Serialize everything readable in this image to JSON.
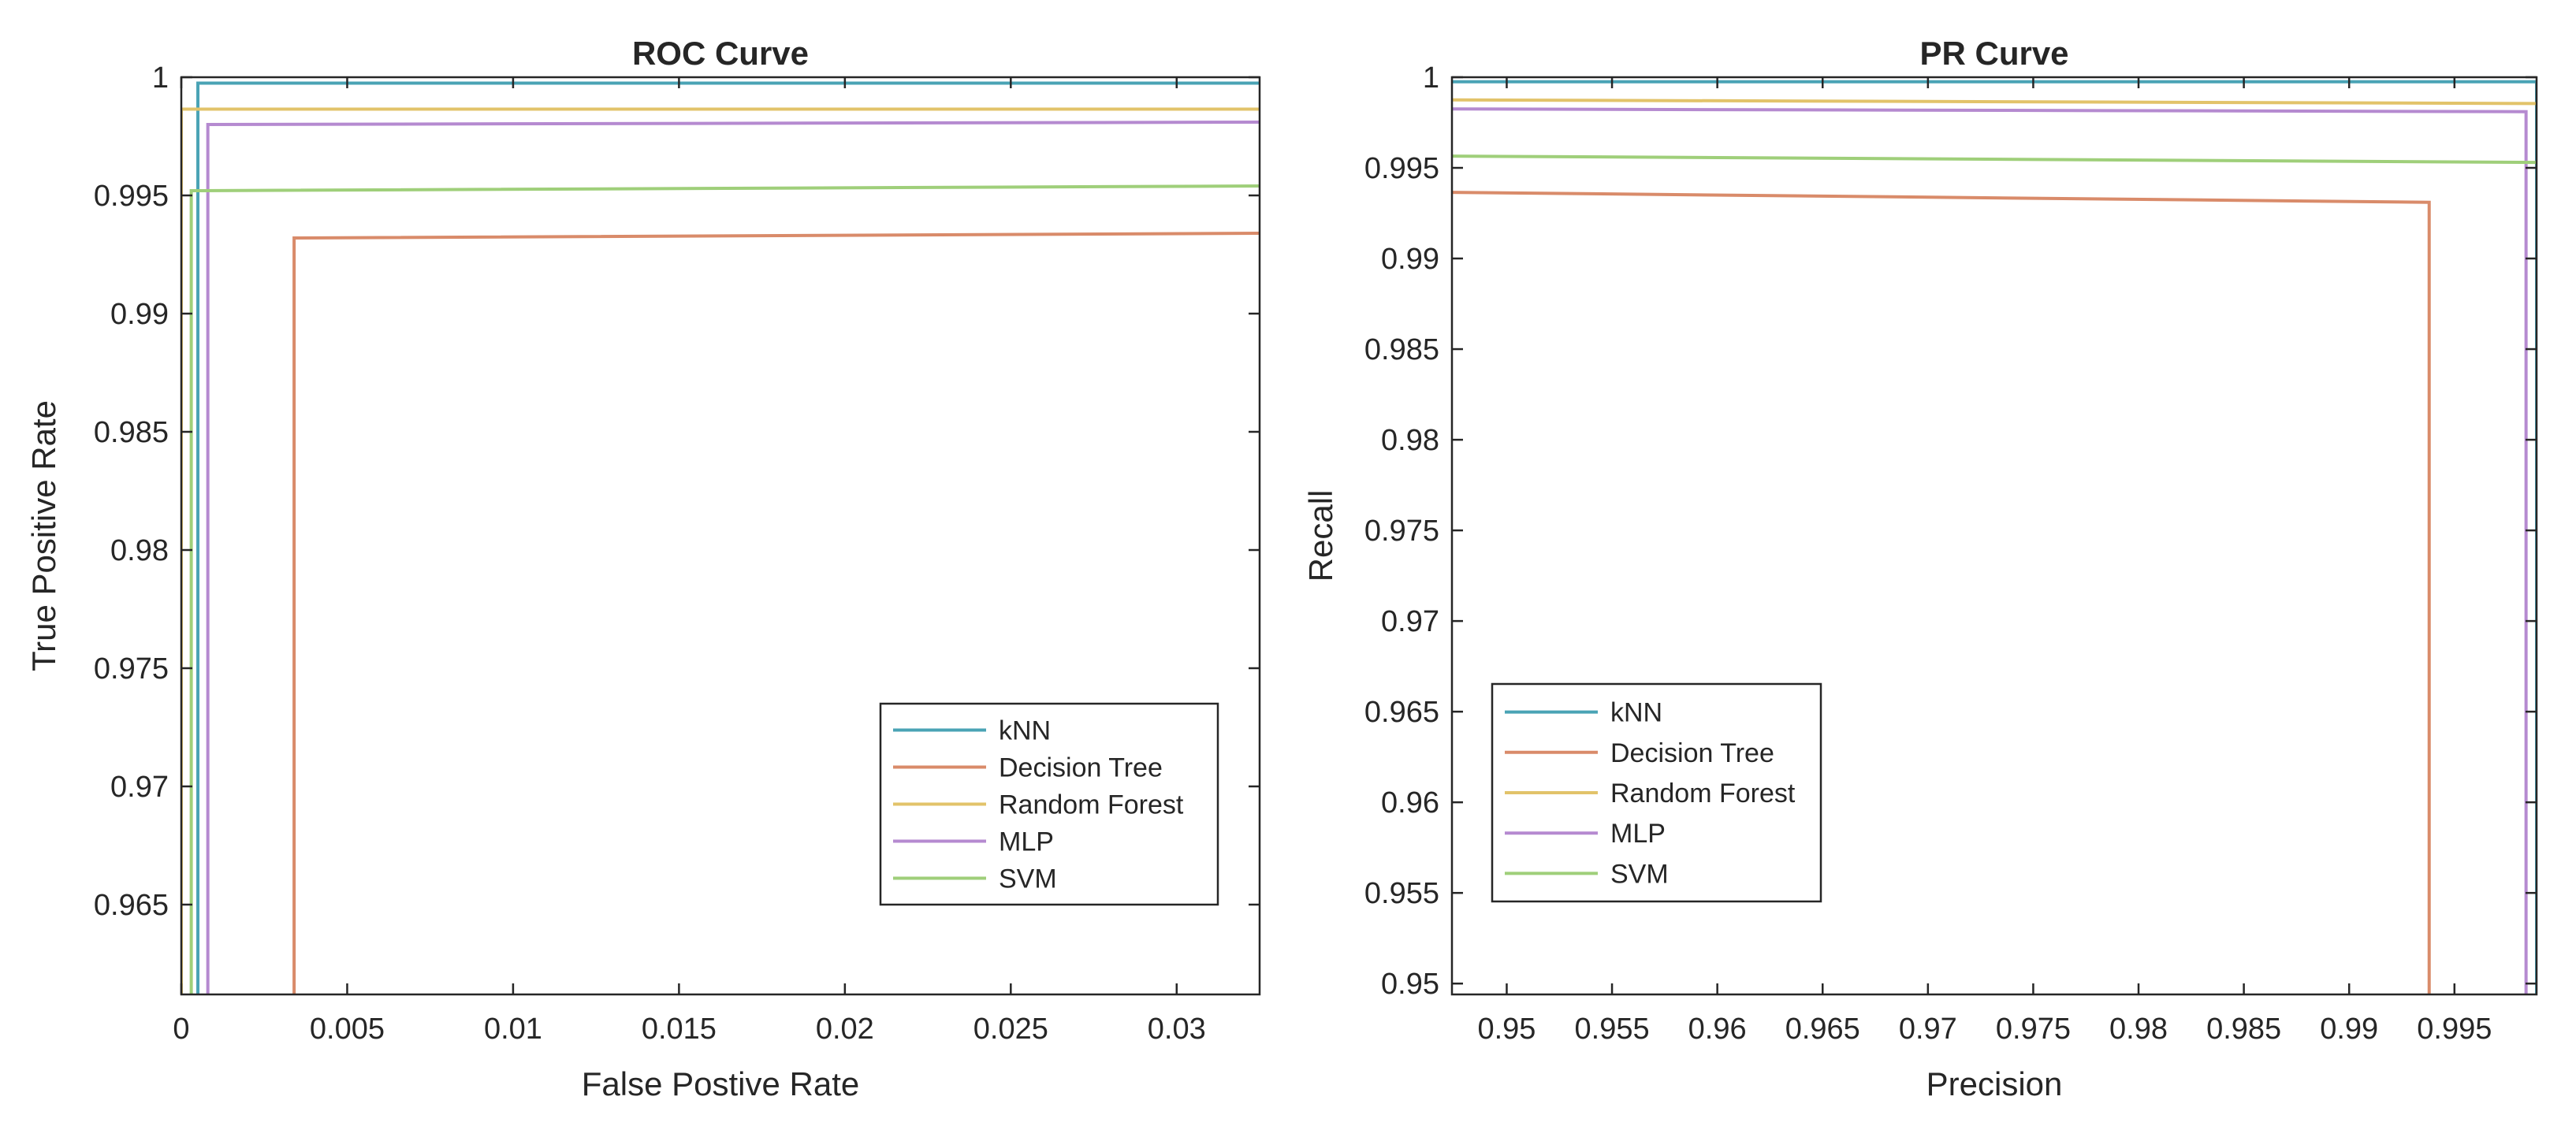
{
  "chart_data": [
    {
      "type": "line",
      "title": "ROC Curve",
      "xlabel": "False Postive Rate",
      "ylabel": "True Positive Rate",
      "xlim": [
        0,
        0.0325
      ],
      "ylim": [
        0.9612,
        1
      ],
      "xticks": [
        0,
        0.005,
        0.01,
        0.015,
        0.02,
        0.025,
        0.03
      ],
      "xtick_labels": [
        "0",
        "0.005",
        "0.01",
        "0.015",
        "0.02",
        "0.025",
        "0.03"
      ],
      "yticks": [
        0.965,
        0.97,
        0.975,
        0.98,
        0.985,
        0.99,
        0.995,
        1
      ],
      "ytick_labels": [
        "0.965",
        "0.97",
        "0.975",
        "0.98",
        "0.985",
        "0.99",
        "0.995",
        "1"
      ],
      "legend_position": "bottom-right",
      "series": [
        {
          "name": "kNN",
          "color": "#4aa3b5",
          "x": [
            0.0005,
            0.0005,
            0.0325
          ],
          "y": [
            0.9612,
            0.99975,
            0.99975
          ]
        },
        {
          "name": "Decision Tree",
          "color": "#d98b6a",
          "x": [
            0.0034,
            0.0034,
            0.0325
          ],
          "y": [
            0.9612,
            0.9932,
            0.9934
          ]
        },
        {
          "name": "Random Forest",
          "color": "#e2c36a",
          "x": [
            0.0,
            0.0,
            0.0325
          ],
          "y": [
            0.9612,
            0.99865,
            0.99865
          ]
        },
        {
          "name": "MLP",
          "color": "#b58ad0",
          "x": [
            0.0008,
            0.0008,
            0.0325
          ],
          "y": [
            0.9612,
            0.998,
            0.9981
          ]
        },
        {
          "name": "SVM",
          "color": "#9fcf7a",
          "x": [
            0.0003,
            0.0003,
            0.0325
          ],
          "y": [
            0.9612,
            0.9952,
            0.9954
          ]
        }
      ]
    },
    {
      "type": "line",
      "title": "PR Curve",
      "xlabel": "Precision",
      "ylabel": "Recall",
      "xlim": [
        0.9474,
        0.9989
      ],
      "ylim": [
        0.9494,
        1
      ],
      "xticks": [
        0.95,
        0.955,
        0.96,
        0.965,
        0.97,
        0.975,
        0.98,
        0.985,
        0.99,
        0.995
      ],
      "xtick_labels": [
        "0.95",
        "0.955",
        "0.96",
        "0.965",
        "0.97",
        "0.975",
        "0.98",
        "0.985",
        "0.99",
        "0.995"
      ],
      "yticks": [
        0.95,
        0.955,
        0.96,
        0.965,
        0.97,
        0.975,
        0.98,
        0.985,
        0.99,
        0.995,
        1
      ],
      "ytick_labels": [
        "0.95",
        "0.955",
        "0.96",
        "0.965",
        "0.97",
        "0.975",
        "0.98",
        "0.985",
        "0.99",
        "0.995",
        "1"
      ],
      "legend_position": "bottom-left",
      "series": [
        {
          "name": "kNN",
          "color": "#4aa3b5",
          "x": [
            0.9474,
            0.9989,
            0.9989
          ],
          "y": [
            0.99975,
            0.99975,
            0.9494
          ]
        },
        {
          "name": "Decision Tree",
          "color": "#d98b6a",
          "x": [
            0.9474,
            0.9938,
            0.9938
          ],
          "y": [
            0.99365,
            0.9931,
            0.9494
          ]
        },
        {
          "name": "Random Forest",
          "color": "#e2c36a",
          "x": [
            0.9474,
            0.9989
          ],
          "y": [
            0.99875,
            0.99855
          ]
        },
        {
          "name": "MLP",
          "color": "#b58ad0",
          "x": [
            0.9474,
            0.9984,
            0.9984
          ],
          "y": [
            0.99825,
            0.9981,
            0.9494
          ]
        },
        {
          "name": "SVM",
          "color": "#9fcf7a",
          "x": [
            0.9474,
            0.9989
          ],
          "y": [
            0.99565,
            0.9953
          ]
        }
      ]
    }
  ]
}
